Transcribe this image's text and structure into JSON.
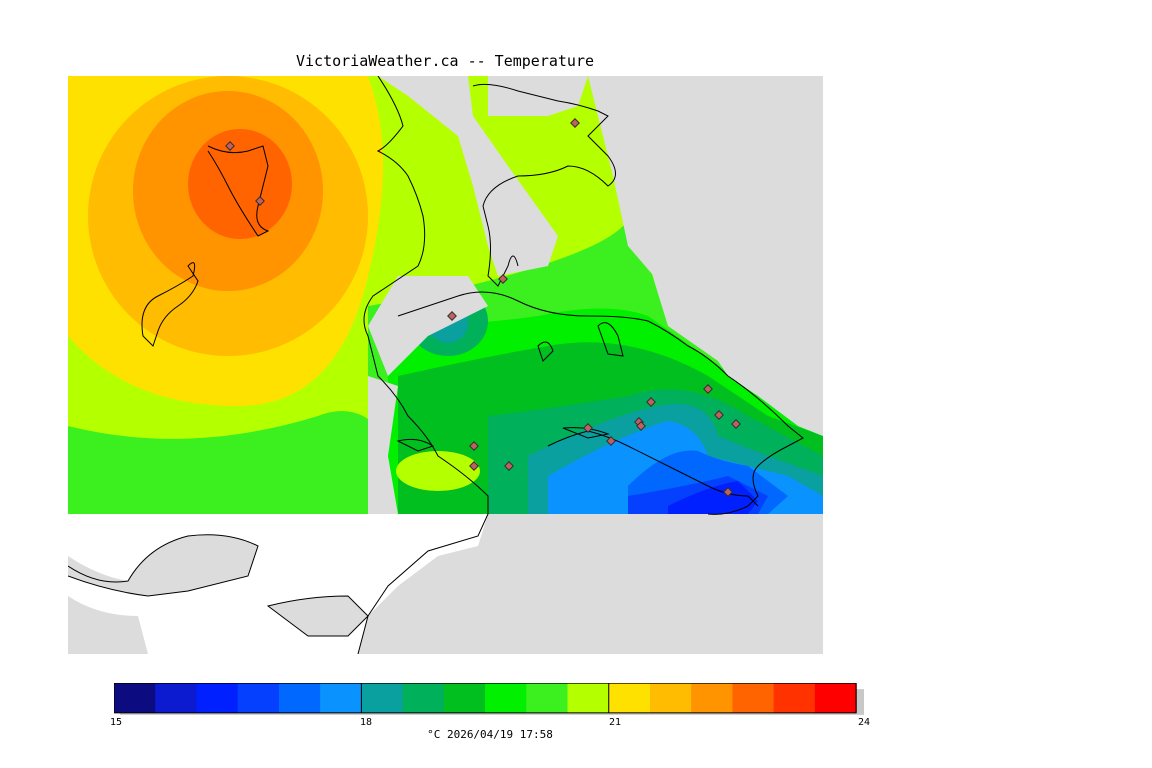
{
  "title": "VictoriaWeather.ca -- Temperature",
  "footer": "°C  2026/04/19 17:58",
  "legend": {
    "min": 15,
    "max": 24,
    "ticks": [
      "15",
      "18",
      "21",
      "24"
    ],
    "colors": [
      "#0c0c80",
      "#0c1ad0",
      "#0020ff",
      "#0540ff",
      "#0068ff",
      "#0a92ff",
      "#0aa0a0",
      "#00b05a",
      "#00bf1e",
      "#00f000",
      "#3cf020",
      "#b4ff00",
      "#ffe100",
      "#ffbc00",
      "#ff9300",
      "#ff6400",
      "#ff3200",
      "#ff0000"
    ]
  },
  "map": {
    "land_color": "#dcdcdc",
    "stations": 17
  }
}
